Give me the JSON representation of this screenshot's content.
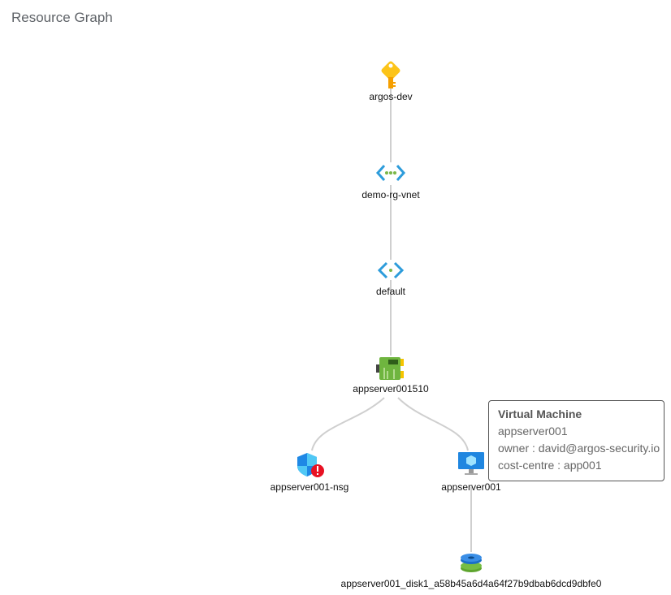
{
  "header": {
    "title": "Resource Graph"
  },
  "nodes": [
    {
      "label": "argos-dev",
      "icon": "key-icon"
    },
    {
      "label": "demo-rg-vnet",
      "icon": "virtual-network-icon"
    },
    {
      "label": "default",
      "icon": "subnet-icon"
    },
    {
      "label": "appserver001510",
      "icon": "network-interface-icon"
    },
    {
      "label": "appserver001-nsg",
      "icon": "network-security-group-warning-icon"
    },
    {
      "label": "appserver001",
      "icon": "virtual-machine-icon"
    },
    {
      "label": "appserver001_disk1_a58b45a6d4a64f27b9dbab6dcd9dbfe0",
      "icon": "disk-icon"
    }
  ],
  "edges": [
    [
      "argos-dev",
      "demo-rg-vnet"
    ],
    [
      "demo-rg-vnet",
      "default"
    ],
    [
      "default",
      "appserver001510"
    ],
    [
      "appserver001510",
      "appserver001-nsg"
    ],
    [
      "appserver001510",
      "appserver001"
    ],
    [
      "appserver001",
      "appserver001_disk1_a58b45a6d4a64f27b9dbab6dcd9dbfe0"
    ]
  ],
  "tooltip": {
    "title": "Virtual Machine",
    "name": "appserver001",
    "owner": "owner : david@argos-security.io",
    "cost_centre": "cost-centre : app001"
  }
}
